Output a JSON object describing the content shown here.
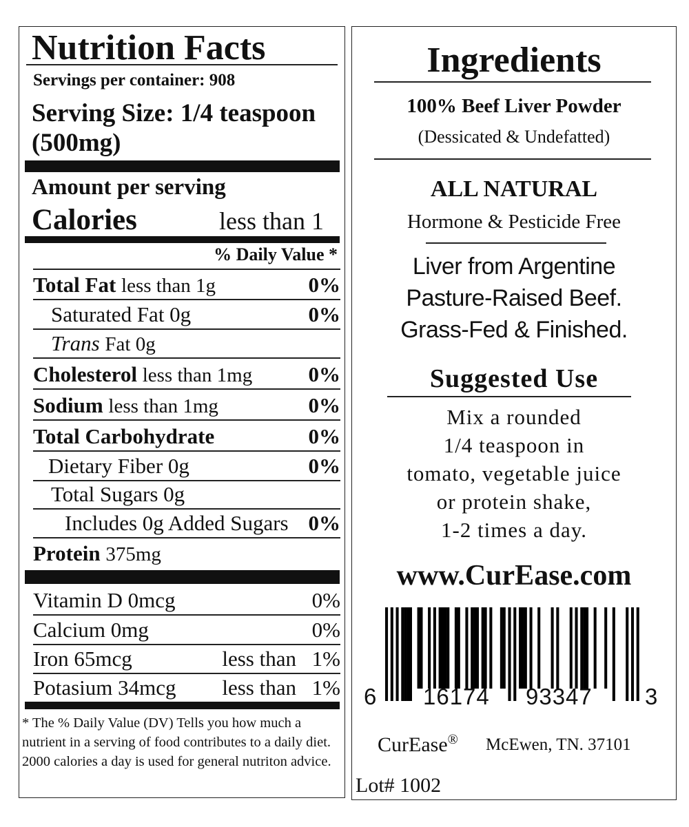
{
  "nutrition": {
    "title": "Nutrition Facts",
    "servings": "Servings per container: 908",
    "serving_size": "Serving Size: 1/4 teaspoon",
    "serving_weight": "(500mg)",
    "amount_per_serving": "Amount per serving",
    "calories_label": "Calories",
    "calories_value": "less than 1",
    "dv_header": "% Daily Value *",
    "rows": [
      {
        "label": "Total Fat",
        "amount": "less than 1g",
        "pct": "0%"
      },
      {
        "label": "Saturated Fat 0g",
        "amount": "",
        "pct": "0%"
      },
      {
        "label": "Trans",
        "amount": "Fat 0g",
        "pct": ""
      },
      {
        "label": "Cholesterol",
        "amount": "less than 1mg",
        "pct": "0%"
      },
      {
        "label": "Sodium",
        "amount": "less than 1mg",
        "pct": "0%"
      },
      {
        "label": "Total Carbohydrate",
        "amount": "",
        "pct": "0%"
      },
      {
        "label": "Dietary Fiber 0g",
        "amount": "",
        "pct": "0%"
      },
      {
        "label": "Total Sugars 0g",
        "amount": "",
        "pct": ""
      },
      {
        "label": "Includes 0g Added Sugars",
        "amount": "",
        "pct": "0%"
      },
      {
        "label": "Protein",
        "amount": "375mg",
        "pct": ""
      }
    ],
    "vitamins": [
      {
        "label": "Vitamin D 0mcg",
        "qual": "",
        "pct": "0%"
      },
      {
        "label": "Calcium 0mg",
        "qual": "",
        "pct": "0%"
      },
      {
        "label": "Iron 65mcg",
        "qual": "less than",
        "pct": "1%"
      },
      {
        "label": "Potasium 34mcg",
        "qual": "less than",
        "pct": "1%"
      }
    ],
    "footnote": "* The % Daily Value (DV) Tells you how much a nutrient in a serving of food contributes to a daily diet. 2000 calories a day is used for general nutriton advice."
  },
  "ingredients": {
    "title": "Ingredients",
    "product": "100% Beef Liver Powder",
    "process": "(Dessicated & Undefatted)",
    "natural": "ALL NATURAL",
    "free": "Hormone & Pesticide Free",
    "origin1": "Liver from Argentine",
    "origin2": "Pasture-Raised Beef.",
    "origin3": "Grass-Fed & Finished.",
    "use_title": "Suggested Use",
    "use": [
      "Mix a rounded",
      "1/4 teaspoon in",
      "tomato, vegetable juice",
      "or protein shake,",
      "1-2 times a day."
    ],
    "website": "www.CurEase.com",
    "barcode": {
      "first": "6",
      "left": "16174",
      "right": "93347",
      "last": "3",
      "digits": "616174933473"
    },
    "brand": "CurEase",
    "registered": "®",
    "address": "McEwen, TN. 37101",
    "lot": "Lot# 1002"
  }
}
